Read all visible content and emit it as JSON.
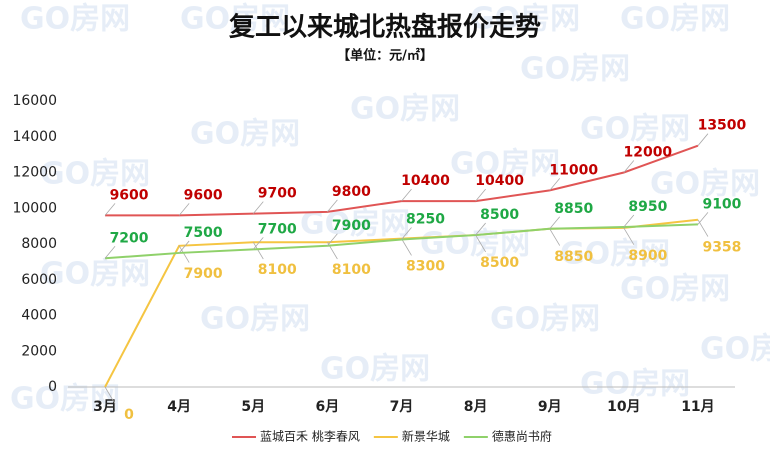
{
  "chart_data": {
    "type": "line",
    "title": "复工以来城北热盘报价走势",
    "subtitle": "【单位：元/㎡】",
    "watermark": "GO房网",
    "categories": [
      "3月",
      "4月",
      "5月",
      "6月",
      "7月",
      "8月",
      "9月",
      "10月",
      "11月"
    ],
    "series": [
      {
        "name": "蓝城百禾 桃李春风",
        "color": "#e05555",
        "label_color": "#c00000",
        "values": [
          9600,
          9600,
          9700,
          9800,
          10400,
          10400,
          11000,
          12000,
          13500
        ]
      },
      {
        "name": "新景华城",
        "color": "#f5c542",
        "label_color": "#f0c040",
        "values": [
          0,
          7900,
          8100,
          8100,
          8300,
          8500,
          8850,
          8900,
          9358
        ]
      },
      {
        "name": "德惠尚书府",
        "color": "#8fd16a",
        "label_color": "#1fa845",
        "values": [
          7200,
          7500,
          7700,
          7900,
          8250,
          8500,
          8850,
          8950,
          9100
        ]
      }
    ],
    "ylim": [
      0,
      16000
    ],
    "yticks": [
      0,
      2000,
      4000,
      6000,
      8000,
      10000,
      12000,
      14000,
      16000
    ],
    "grid": false,
    "legend": "bottom"
  }
}
